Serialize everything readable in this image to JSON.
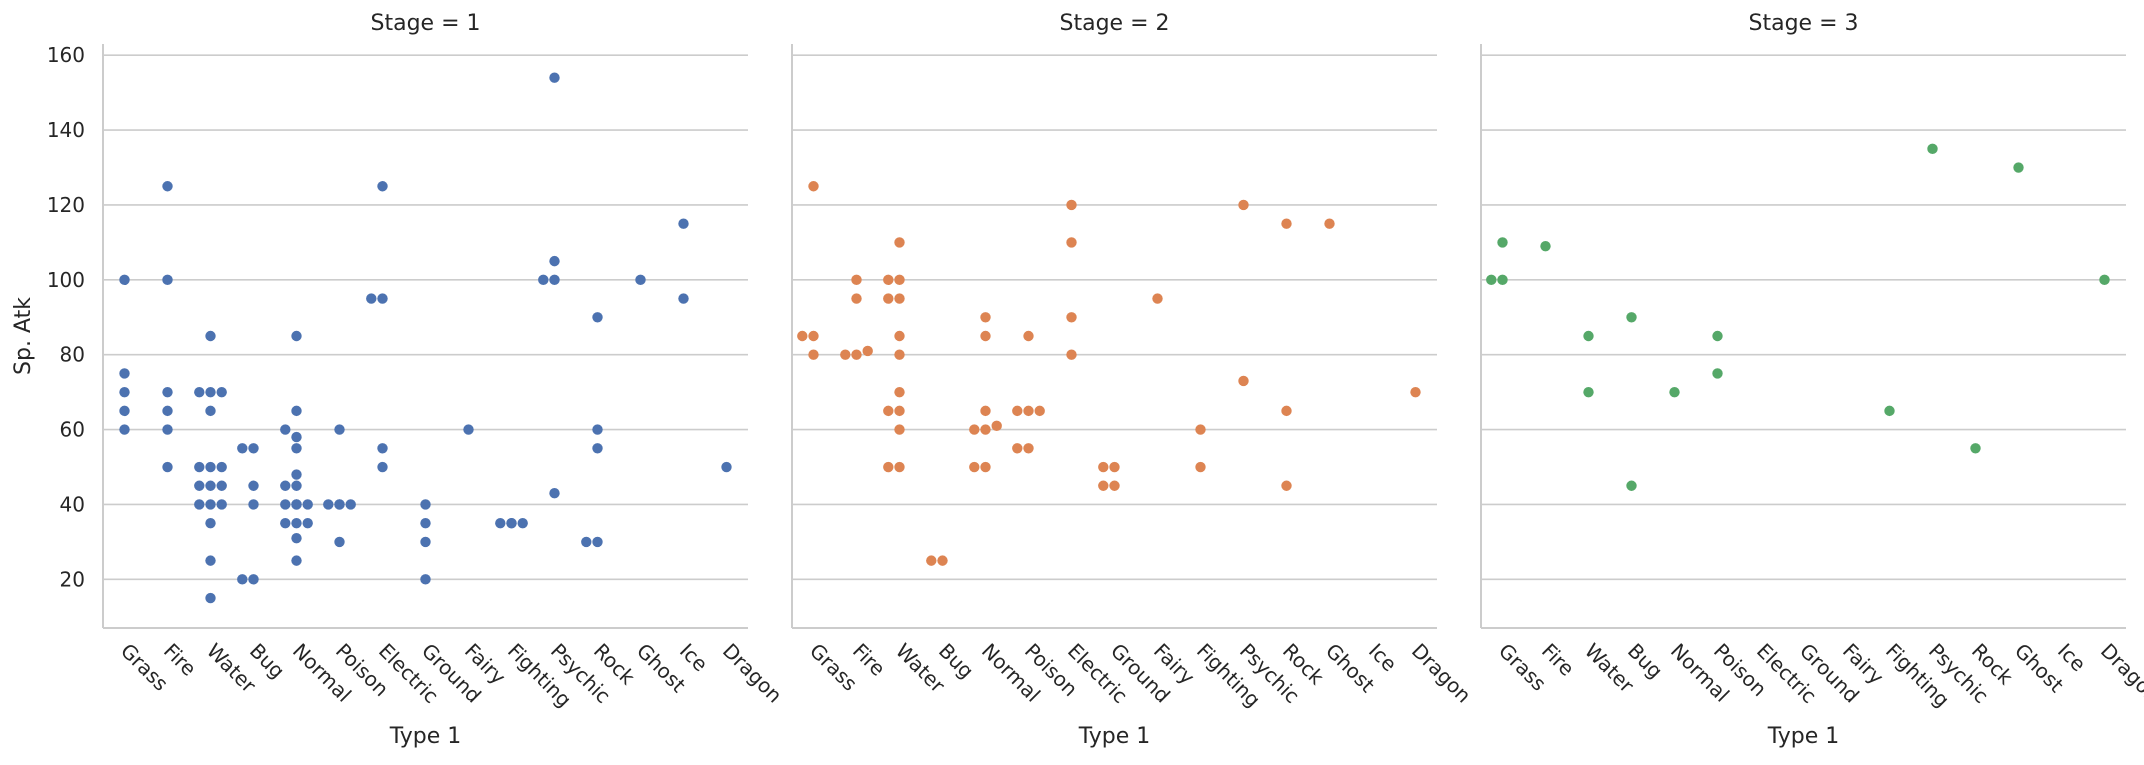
{
  "chart_data": {
    "type": "scatter",
    "ylabel": "Sp. Atk",
    "yticks": [
      20,
      40,
      60,
      80,
      100,
      120,
      140,
      160
    ],
    "ylim": [
      7,
      163
    ],
    "grid": "horizontal",
    "categories": [
      "Grass",
      "Fire",
      "Water",
      "Bug",
      "Normal",
      "Poison",
      "Electric",
      "Ground",
      "Fairy",
      "Fighting",
      "Psychic",
      "Rock",
      "Ghost",
      "Ice",
      "Dragon"
    ],
    "panels": [
      {
        "title": "Stage = 1",
        "xlabel": "Type 1",
        "color": "#4c72b0",
        "points": {
          "Grass": [
            100,
            75,
            70,
            65,
            60
          ],
          "Fire": [
            125,
            100,
            70,
            65,
            60,
            50
          ],
          "Water": [
            85,
            70,
            70,
            70,
            65,
            50,
            50,
            50,
            45,
            45,
            45,
            40,
            40,
            40,
            35,
            25,
            15
          ],
          "Bug": [
            55,
            55,
            45,
            40,
            20,
            20
          ],
          "Normal": [
            85,
            65,
            60,
            58,
            55,
            48,
            45,
            45,
            40,
            40,
            40,
            40,
            35,
            35,
            35,
            31,
            25
          ],
          "Poison": [
            60,
            40,
            40,
            40,
            40,
            30
          ],
          "Electric": [
            125,
            95,
            95,
            55,
            50
          ],
          "Ground": [
            40,
            35,
            30,
            20
          ],
          "Fairy": [
            60
          ],
          "Fighting": [
            35,
            35,
            35,
            35
          ],
          "Psychic": [
            154,
            105,
            100,
            100,
            43
          ],
          "Rock": [
            90,
            60,
            55,
            30,
            30
          ],
          "Ghost": [
            100
          ],
          "Ice": [
            115,
            95
          ],
          "Dragon": [
            50
          ]
        }
      },
      {
        "title": "Stage = 2",
        "xlabel": "Type 1",
        "color": "#dd8452",
        "points": {
          "Grass": [
            125,
            85,
            85,
            80
          ],
          "Fire": [
            100,
            95,
            81,
            80,
            80
          ],
          "Water": [
            110,
            100,
            100,
            95,
            95,
            85,
            80,
            70,
            65,
            65,
            60,
            50,
            50
          ],
          "Bug": [
            25,
            25
          ],
          "Normal": [
            90,
            85,
            65,
            61,
            60,
            60,
            50,
            50
          ],
          "Poison": [
            85,
            65,
            65,
            65,
            55,
            55
          ],
          "Electric": [
            120,
            110,
            90,
            80
          ],
          "Ground": [
            50,
            50,
            45,
            45
          ],
          "Fairy": [
            95
          ],
          "Fighting": [
            60,
            50
          ],
          "Psychic": [
            120,
            73
          ],
          "Rock": [
            115,
            65,
            45
          ],
          "Ghost": [
            115
          ],
          "Ice": [],
          "Dragon": [
            70
          ]
        }
      },
      {
        "title": "Stage = 3",
        "xlabel": "Type 1",
        "color": "#55a868",
        "points": {
          "Grass": [
            110,
            100,
            100
          ],
          "Fire": [
            109
          ],
          "Water": [
            85,
            70
          ],
          "Bug": [
            90,
            45
          ],
          "Normal": [
            70
          ],
          "Poison": [
            85,
            75
          ],
          "Electric": [],
          "Ground": [],
          "Fairy": [],
          "Fighting": [
            65
          ],
          "Psychic": [
            135
          ],
          "Rock": [
            55
          ],
          "Ghost": [
            130
          ],
          "Ice": [],
          "Dragon": [
            100
          ]
        }
      }
    ]
  }
}
